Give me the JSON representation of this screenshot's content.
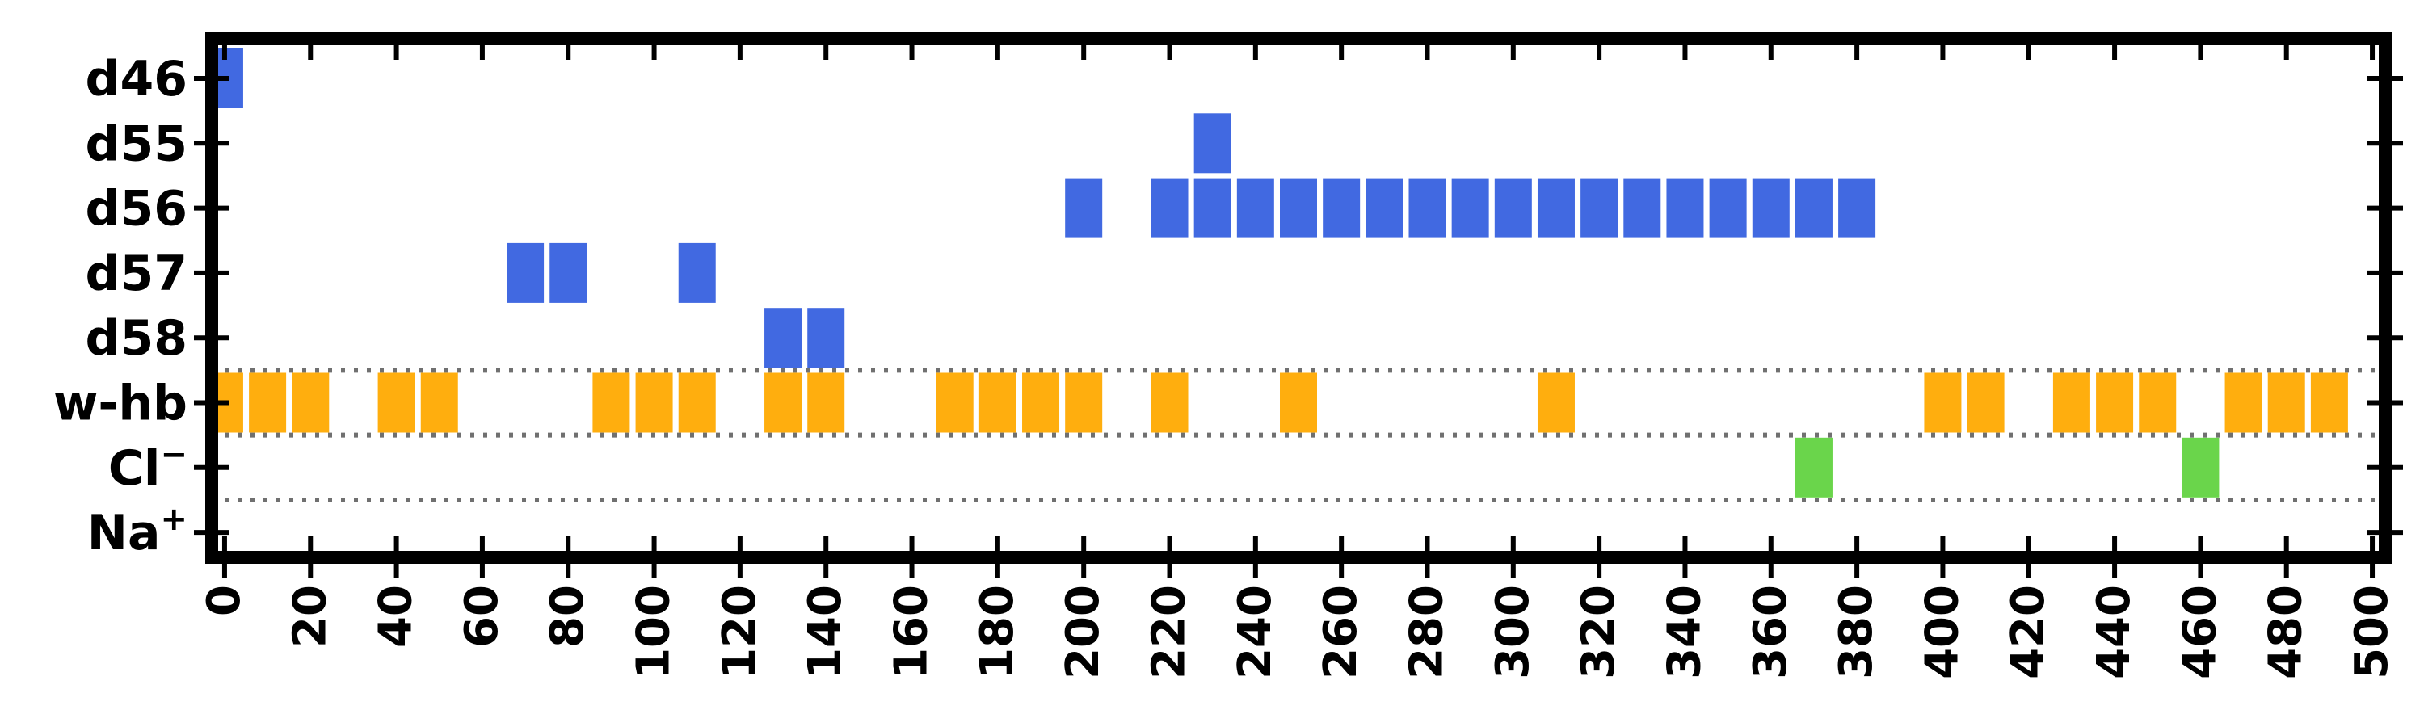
{
  "chart_data": {
    "type": "event-raster",
    "xlim": [
      -3,
      503
    ],
    "xticks": [
      0,
      20,
      40,
      60,
      80,
      100,
      120,
      140,
      160,
      180,
      200,
      220,
      240,
      260,
      280,
      300,
      320,
      340,
      360,
      380,
      400,
      420,
      440,
      460,
      480,
      500
    ],
    "xtick_labels": [
      "0",
      "20",
      "40",
      "60",
      "80",
      "100",
      "120",
      "140",
      "160",
      "180",
      "200",
      "220",
      "240",
      "260",
      "280",
      "300",
      "320",
      "340",
      "360",
      "380",
      "400",
      "420",
      "440",
      "460",
      "480",
      "500"
    ],
    "rows": [
      {
        "label": "d46",
        "color": "#4169E1",
        "x": [
          0
        ]
      },
      {
        "label": "d55",
        "color": "#4169E1",
        "x": [
          230
        ]
      },
      {
        "label": "d56",
        "color": "#4169E1",
        "x": [
          200,
          220,
          230,
          240,
          250,
          260,
          270,
          280,
          290,
          300,
          310,
          320,
          330,
          340,
          350,
          360,
          370,
          380
        ]
      },
      {
        "label": "d57",
        "color": "#4169E1",
        "x": [
          70,
          80,
          110
        ]
      },
      {
        "label": "d58",
        "color": "#4169E1",
        "x": [
          130,
          140
        ]
      },
      {
        "label": "w-hb",
        "color": "#FFAE0E",
        "x": [
          0,
          10,
          20,
          40,
          50,
          90,
          100,
          110,
          130,
          140,
          170,
          180,
          190,
          200,
          220,
          250,
          310,
          400,
          410,
          430,
          440,
          450,
          470,
          480,
          490
        ]
      },
      {
        "label": "Cl",
        "label_sup": "−",
        "color": "#6AD54B",
        "x": [
          370,
          460
        ]
      },
      {
        "label": "Na",
        "label_sup": "+",
        "color": "#6AD54B",
        "x": []
      }
    ],
    "separators_between_rows": [
      4.5,
      5.5,
      6.5
    ],
    "grid": false,
    "legend": "none"
  }
}
